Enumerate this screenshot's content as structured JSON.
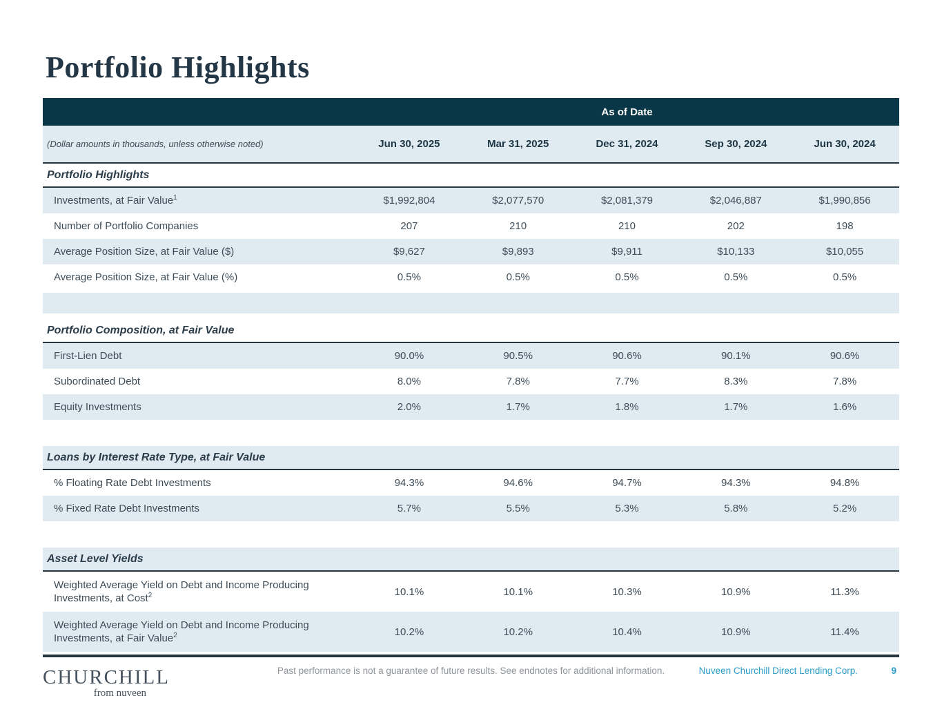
{
  "page": {
    "title": "Portfolio Highlights"
  },
  "colors": {
    "header_band": "#0a3747",
    "row_stripe": "#dfebf1",
    "rule_dark": "#253640",
    "accent_teal": "#2a9dc7",
    "title_navy": "#243747"
  },
  "table": {
    "banner": "As of Date",
    "note": "(Dollar amounts in thousands, unless otherwise noted)",
    "columns": [
      "Jun 30, 2025",
      "Mar 31, 2025",
      "Dec 31, 2024",
      "Sep 30, 2024",
      "Jun 30, 2024"
    ],
    "sections": [
      {
        "header": "Portfolio Highlights",
        "header_bg": "white",
        "gap_before": false,
        "blank_after": true,
        "rows": [
          {
            "label": "Investments, at Fair Value",
            "sup": "1",
            "bg": "blue",
            "tall": false,
            "values": [
              "$1,992,804",
              "$2,077,570",
              "$2,081,379",
              "$2,046,887",
              "$1,990,856"
            ]
          },
          {
            "label": "Number of Portfolio Companies",
            "sup": "",
            "bg": "white",
            "tall": false,
            "values": [
              "207",
              "210",
              "210",
              "202",
              "198"
            ]
          },
          {
            "label": "Average Position Size, at Fair Value ($)",
            "sup": "",
            "bg": "blue",
            "tall": false,
            "values": [
              "$9,627",
              "$9,893",
              "$9,911",
              "$10,133",
              "$10,055"
            ]
          },
          {
            "label": "Average Position Size, at Fair Value (%)",
            "sup": "",
            "bg": "white",
            "tall": false,
            "values": [
              "0.5%",
              "0.5%",
              "0.5%",
              "0.5%",
              "0.5%"
            ]
          }
        ]
      },
      {
        "header": "Portfolio Composition, at Fair Value",
        "header_bg": "white",
        "gap_before": false,
        "blank_after": false,
        "rows": [
          {
            "label": "First-Lien Debt",
            "sup": "",
            "bg": "blue",
            "tall": false,
            "values": [
              "90.0%",
              "90.5%",
              "90.6%",
              "90.1%",
              "90.6%"
            ]
          },
          {
            "label": "Subordinated Debt",
            "sup": "",
            "bg": "white",
            "tall": false,
            "values": [
              "8.0%",
              "7.8%",
              "7.7%",
              "8.3%",
              "7.8%"
            ]
          },
          {
            "label": "Equity Investments",
            "sup": "",
            "bg": "blue",
            "tall": false,
            "values": [
              "2.0%",
              "1.7%",
              "1.8%",
              "1.7%",
              "1.6%"
            ]
          }
        ]
      },
      {
        "header": "Loans by Interest Rate Type, at Fair Value",
        "header_bg": "blue",
        "gap_before": true,
        "blank_after": false,
        "rows": [
          {
            "label": "% Floating Rate Debt Investments",
            "sup": "",
            "bg": "white",
            "tall": false,
            "values": [
              "94.3%",
              "94.6%",
              "94.7%",
              "94.3%",
              "94.8%"
            ]
          },
          {
            "label": "% Fixed Rate Debt Investments",
            "sup": "",
            "bg": "blue",
            "tall": false,
            "values": [
              "5.7%",
              "5.5%",
              "5.3%",
              "5.8%",
              "5.2%"
            ]
          }
        ]
      },
      {
        "header": "Asset Level Yields",
        "header_bg": "blue",
        "gap_before": true,
        "blank_after": false,
        "rows": [
          {
            "label": "Weighted Average Yield on Debt and Income Producing Investments, at Cost",
            "sup": "2",
            "bg": "white",
            "tall": true,
            "values": [
              "10.1%",
              "10.1%",
              "10.3%",
              "10.9%",
              "11.3%"
            ]
          },
          {
            "label": "Weighted Average Yield on Debt and Income Producing Investments, at Fair Value",
            "sup": "2",
            "bg": "blue",
            "tall": true,
            "values": [
              "10.2%",
              "10.2%",
              "10.4%",
              "10.9%",
              "11.4%"
            ]
          }
        ]
      }
    ]
  },
  "footer": {
    "logo_main": "CHURCHILL",
    "logo_sub": "from nuveen",
    "disclaimer": "Past performance is not a guarantee of future results. See endnotes for additional information.",
    "company": "Nuveen Churchill Direct Lending Corp.",
    "page_number": "9"
  }
}
